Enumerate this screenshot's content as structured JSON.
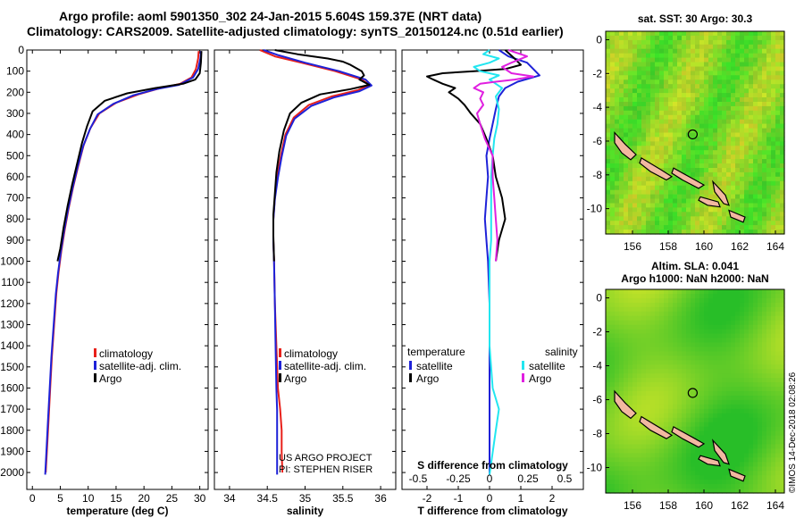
{
  "header": {
    "line1": "Argo profile: aoml 5901350_302 24-Jan-2015 5.604S 159.37E (NRT data)",
    "line2": "Climatology: CARS2009. Satellite-adjusted climatology: synTS_20150124.nc (0.51d earlier)"
  },
  "colors": {
    "climatology": "#e8201a",
    "satellite": "#1e22d8",
    "argo": "#000000",
    "sat_salinity": "#22e6f0",
    "argo_salinity_diff": "#e020e0",
    "land": "#f2b8a0"
  },
  "footer": {
    "imos_stamp": "©IMOS 14-Dec-2018 02:08:26",
    "credit_line1": "US ARGO PROJECT",
    "credit_line2": "PI: STEPHEN RISER"
  },
  "chart_data": [
    {
      "type": "line",
      "id": "temperature",
      "xlabel": "temperature (deg C)",
      "ylabel": "",
      "xlim": [
        -1,
        31.5
      ],
      "ylim": [
        2080,
        0
      ],
      "xticks": [
        0,
        5,
        10,
        15,
        20,
        25,
        30
      ],
      "yticks": [
        0,
        100,
        200,
        300,
        400,
        500,
        600,
        700,
        800,
        900,
        1000,
        1100,
        1200,
        1300,
        1400,
        1500,
        1600,
        1700,
        1800,
        1900,
        2000
      ],
      "legend": {
        "placement": "bottom-left",
        "entries": [
          "climatology",
          "satellite-adj. clim.",
          "Argo"
        ]
      },
      "series": [
        {
          "name": "climatology",
          "color": "#e8201a",
          "points": [
            [
              29.8,
              5
            ],
            [
              29.7,
              40
            ],
            [
              29.3,
              90
            ],
            [
              28.5,
              130
            ],
            [
              26.5,
              160
            ],
            [
              23,
              180
            ],
            [
              19,
              210
            ],
            [
              15,
              250
            ],
            [
              12,
              300
            ],
            [
              10.4,
              370
            ],
            [
              9.2,
              450
            ],
            [
              8.2,
              550
            ],
            [
              7.3,
              650
            ],
            [
              6.5,
              750
            ],
            [
              5.8,
              850
            ],
            [
              5.2,
              950
            ],
            [
              4.7,
              1050
            ],
            [
              4.3,
              1150
            ],
            [
              3.9,
              1300
            ],
            [
              3.5,
              1450
            ],
            [
              3.2,
              1600
            ],
            [
              2.9,
              1750
            ],
            [
              2.6,
              1900
            ],
            [
              2.4,
              2000
            ]
          ]
        },
        {
          "name": "satellite-adj. clim.",
          "color": "#1e22d8",
          "points": [
            [
              30.2,
              5
            ],
            [
              30.1,
              40
            ],
            [
              29.7,
              90
            ],
            [
              28.8,
              130
            ],
            [
              26.3,
              165
            ],
            [
              22.2,
              185
            ],
            [
              18,
              215
            ],
            [
              14.5,
              255
            ],
            [
              11.7,
              305
            ],
            [
              10.3,
              375
            ],
            [
              9.1,
              455
            ],
            [
              8.1,
              555
            ],
            [
              7.2,
              655
            ],
            [
              6.4,
              755
            ],
            [
              5.7,
              855
            ],
            [
              5.1,
              955
            ],
            [
              4.6,
              1055
            ],
            [
              4.2,
              1155
            ],
            [
              3.8,
              1305
            ],
            [
              3.4,
              1455
            ],
            [
              3.1,
              1605
            ],
            [
              2.8,
              1755
            ],
            [
              2.5,
              1905
            ],
            [
              2.3,
              2010
            ]
          ]
        },
        {
          "name": "Argo",
          "color": "#000000",
          "points": [
            [
              30.3,
              5
            ],
            [
              30.2,
              60
            ],
            [
              30,
              110
            ],
            [
              29.2,
              140
            ],
            [
              27,
              160
            ],
            [
              22,
              180
            ],
            [
              17,
              205
            ],
            [
              13,
              240
            ],
            [
              10.8,
              290
            ],
            [
              9.8,
              360
            ],
            [
              8.9,
              440
            ],
            [
              8,
              540
            ],
            [
              7.1,
              640
            ],
            [
              6.3,
              740
            ],
            [
              5.6,
              840
            ],
            [
              5,
              940
            ],
            [
              4.5,
              1000
            ]
          ]
        }
      ]
    },
    {
      "type": "line",
      "id": "salinity",
      "xlabel": "salinity",
      "ylabel": "",
      "xlim": [
        33.8,
        36.2
      ],
      "ylim": [
        2080,
        0
      ],
      "xticks": [
        34,
        34.5,
        35,
        35.5,
        36
      ],
      "legend": {
        "placement": "bottom-left",
        "entries": [
          "climatology",
          "satellite-adj. clim.",
          "Argo"
        ]
      },
      "series": [
        {
          "name": "climatology",
          "color": "#e8201a",
          "points": [
            [
              34.4,
              0
            ],
            [
              34.6,
              30
            ],
            [
              34.95,
              60
            ],
            [
              35.4,
              100
            ],
            [
              35.75,
              140
            ],
            [
              35.85,
              165
            ],
            [
              35.7,
              190
            ],
            [
              35.35,
              220
            ],
            [
              35.05,
              260
            ],
            [
              34.85,
              320
            ],
            [
              34.74,
              400
            ],
            [
              34.68,
              500
            ],
            [
              34.63,
              600
            ],
            [
              34.6,
              700
            ],
            [
              34.58,
              800
            ],
            [
              34.58,
              900
            ],
            [
              34.59,
              1000
            ],
            [
              34.6,
              1200
            ],
            [
              34.62,
              1400
            ],
            [
              34.64,
              1600
            ],
            [
              34.67,
              1700
            ],
            [
              34.69,
              1800
            ],
            [
              34.69,
              1900
            ],
            [
              34.7,
              2000
            ]
          ]
        },
        {
          "name": "satellite-adj. clim.",
          "color": "#1e22d8",
          "points": [
            [
              34.45,
              0
            ],
            [
              34.65,
              25
            ],
            [
              35,
              60
            ],
            [
              35.45,
              100
            ],
            [
              35.8,
              140
            ],
            [
              35.88,
              168
            ],
            [
              35.72,
              195
            ],
            [
              35.38,
              225
            ],
            [
              35.08,
              265
            ],
            [
              34.86,
              325
            ],
            [
              34.75,
              405
            ],
            [
              34.69,
              505
            ],
            [
              34.64,
              605
            ],
            [
              34.6,
              705
            ],
            [
              34.58,
              805
            ],
            [
              34.58,
              905
            ],
            [
              34.59,
              1005
            ],
            [
              34.6,
              1205
            ],
            [
              34.61,
              1405
            ],
            [
              34.62,
              1605
            ],
            [
              34.63,
              1705
            ],
            [
              34.63,
              1805
            ],
            [
              34.63,
              1905
            ],
            [
              34.63,
              2010
            ]
          ]
        },
        {
          "name": "Argo",
          "color": "#000000",
          "points": [
            [
              34.6,
              0
            ],
            [
              34.9,
              20
            ],
            [
              35.3,
              40
            ],
            [
              35.5,
              55
            ],
            [
              35.6,
              70
            ],
            [
              35.75,
              100
            ],
            [
              35.78,
              120
            ],
            [
              35.72,
              140
            ],
            [
              35.85,
              165
            ],
            [
              35.6,
              185
            ],
            [
              35.2,
              210
            ],
            [
              34.95,
              250
            ],
            [
              34.8,
              300
            ],
            [
              34.72,
              380
            ],
            [
              34.66,
              480
            ],
            [
              34.62,
              580
            ],
            [
              34.6,
              680
            ],
            [
              34.58,
              780
            ],
            [
              34.58,
              880
            ],
            [
              34.59,
              1000
            ]
          ]
        }
      ]
    },
    {
      "type": "line",
      "id": "difference",
      "xlabel": "T difference from climatology",
      "x2label": "S difference from climatology",
      "xlim": [
        -2.8,
        3.0
      ],
      "ylim": [
        2080,
        0
      ],
      "xticks": [
        -2,
        -1,
        0,
        1,
        2
      ],
      "x2ticks": [
        "-0.5",
        "-0.25",
        "0",
        "0.25",
        "0.5"
      ],
      "legend": {
        "placement": "bottom",
        "temperature_title": "temperature",
        "salinity_title": "salinity",
        "temperature_entries": [
          "satellite",
          "Argo"
        ],
        "salinity_entries": [
          "satellite",
          "Argo"
        ]
      },
      "series": [
        {
          "name": "temperature satellite",
          "color": "#1e22d8",
          "points": [
            [
              0.3,
              0
            ],
            [
              0.6,
              30
            ],
            [
              1.2,
              60
            ],
            [
              1.4,
              90
            ],
            [
              1.6,
              120
            ],
            [
              0.9,
              150
            ],
            [
              0.5,
              180
            ],
            [
              0.3,
              220
            ],
            [
              0.2,
              280
            ],
            [
              0.1,
              350
            ],
            [
              0,
              420
            ],
            [
              -0.1,
              500
            ],
            [
              -0.05,
              600
            ],
            [
              -0.1,
              700
            ],
            [
              -0.15,
              800
            ],
            [
              -0.1,
              900
            ],
            [
              -0.05,
              1000
            ],
            [
              0,
              1200
            ],
            [
              0,
              1400
            ],
            [
              0,
              1600
            ],
            [
              0,
              1800
            ],
            [
              0,
              2010
            ]
          ]
        },
        {
          "name": "temperature Argo",
          "color": "#000000",
          "points": [
            [
              0.5,
              0
            ],
            [
              0.8,
              40
            ],
            [
              1.0,
              70
            ],
            [
              0.5,
              90
            ],
            [
              -0.5,
              100
            ],
            [
              -1.5,
              110
            ],
            [
              -2,
              125
            ],
            [
              -1.8,
              140
            ],
            [
              -1.5,
              160
            ],
            [
              -1.1,
              180
            ],
            [
              -1.3,
              200
            ],
            [
              -1.0,
              230
            ],
            [
              -0.8,
              260
            ],
            [
              -0.6,
              300
            ],
            [
              -0.3,
              350
            ],
            [
              -0.1,
              420
            ],
            [
              0.1,
              500
            ],
            [
              0.2,
              600
            ],
            [
              0.4,
              700
            ],
            [
              0.5,
              800
            ],
            [
              0.3,
              900
            ],
            [
              0.2,
              1000
            ]
          ]
        },
        {
          "name": "salinity satellite",
          "color": "#22e6f0",
          "points": [
            [
              0,
              0
            ],
            [
              -0.2,
              20
            ],
            [
              0.3,
              40
            ],
            [
              0,
              60
            ],
            [
              -0.5,
              80
            ],
            [
              -0.3,
              100
            ],
            [
              0.3,
              120
            ],
            [
              0,
              140
            ],
            [
              0.2,
              160
            ],
            [
              0.4,
              180
            ],
            [
              0.2,
              220
            ],
            [
              0.3,
              280
            ],
            [
              0.25,
              350
            ],
            [
              0.15,
              420
            ],
            [
              0.1,
              500
            ],
            [
              0.05,
              600
            ],
            [
              0.05,
              700
            ],
            [
              0.05,
              800
            ],
            [
              0.05,
              900
            ],
            [
              0,
              1000
            ],
            [
              0,
              1200
            ],
            [
              0,
              1400
            ],
            [
              0.1,
              1600
            ],
            [
              0.3,
              1700
            ],
            [
              0.2,
              1800
            ],
            [
              0,
              2010
            ]
          ]
        },
        {
          "name": "salinity Argo",
          "color": "#e020e0",
          "points": [
            [
              0.6,
              0
            ],
            [
              1.2,
              30
            ],
            [
              0.7,
              60
            ],
            [
              0.4,
              80
            ],
            [
              0.7,
              110
            ],
            [
              1.4,
              125
            ],
            [
              0.8,
              140
            ],
            [
              0.2,
              150
            ],
            [
              -0.3,
              160
            ],
            [
              -0.5,
              180
            ],
            [
              -0.2,
              200
            ],
            [
              -0.3,
              230
            ],
            [
              -0.2,
              260
            ],
            [
              -0.4,
              300
            ],
            [
              -0.3,
              350
            ],
            [
              -0.15,
              420
            ],
            [
              0.1,
              500
            ],
            [
              0.1,
              600
            ],
            [
              0.15,
              700
            ],
            [
              0.2,
              800
            ],
            [
              0.25,
              900
            ],
            [
              0.2,
              1000
            ]
          ]
        }
      ]
    },
    {
      "type": "heatmap",
      "id": "sst-map",
      "title": "sat. SST: 30 Argo: 30.3",
      "xlim": [
        154.5,
        164.5
      ],
      "ylim": [
        -11.5,
        0.5
      ],
      "xticks": [
        156,
        158,
        160,
        162,
        164
      ],
      "yticks": [
        0,
        -2,
        -4,
        -6,
        -8,
        -10
      ],
      "marker": {
        "lon": 159.37,
        "lat": -5.604
      }
    },
    {
      "type": "heatmap",
      "id": "sla-map",
      "title_line1": "Altim. SLA: 0.041",
      "title_line2": "Argo h1000: NaN h2000: NaN",
      "xlim": [
        154.5,
        164.5
      ],
      "ylim": [
        -11.5,
        0.5
      ],
      "xticks": [
        156,
        158,
        160,
        162,
        164
      ],
      "yticks": [
        0,
        -2,
        -4,
        -6,
        -8,
        -10
      ],
      "marker": {
        "lon": 159.37,
        "lat": -5.604
      }
    }
  ]
}
